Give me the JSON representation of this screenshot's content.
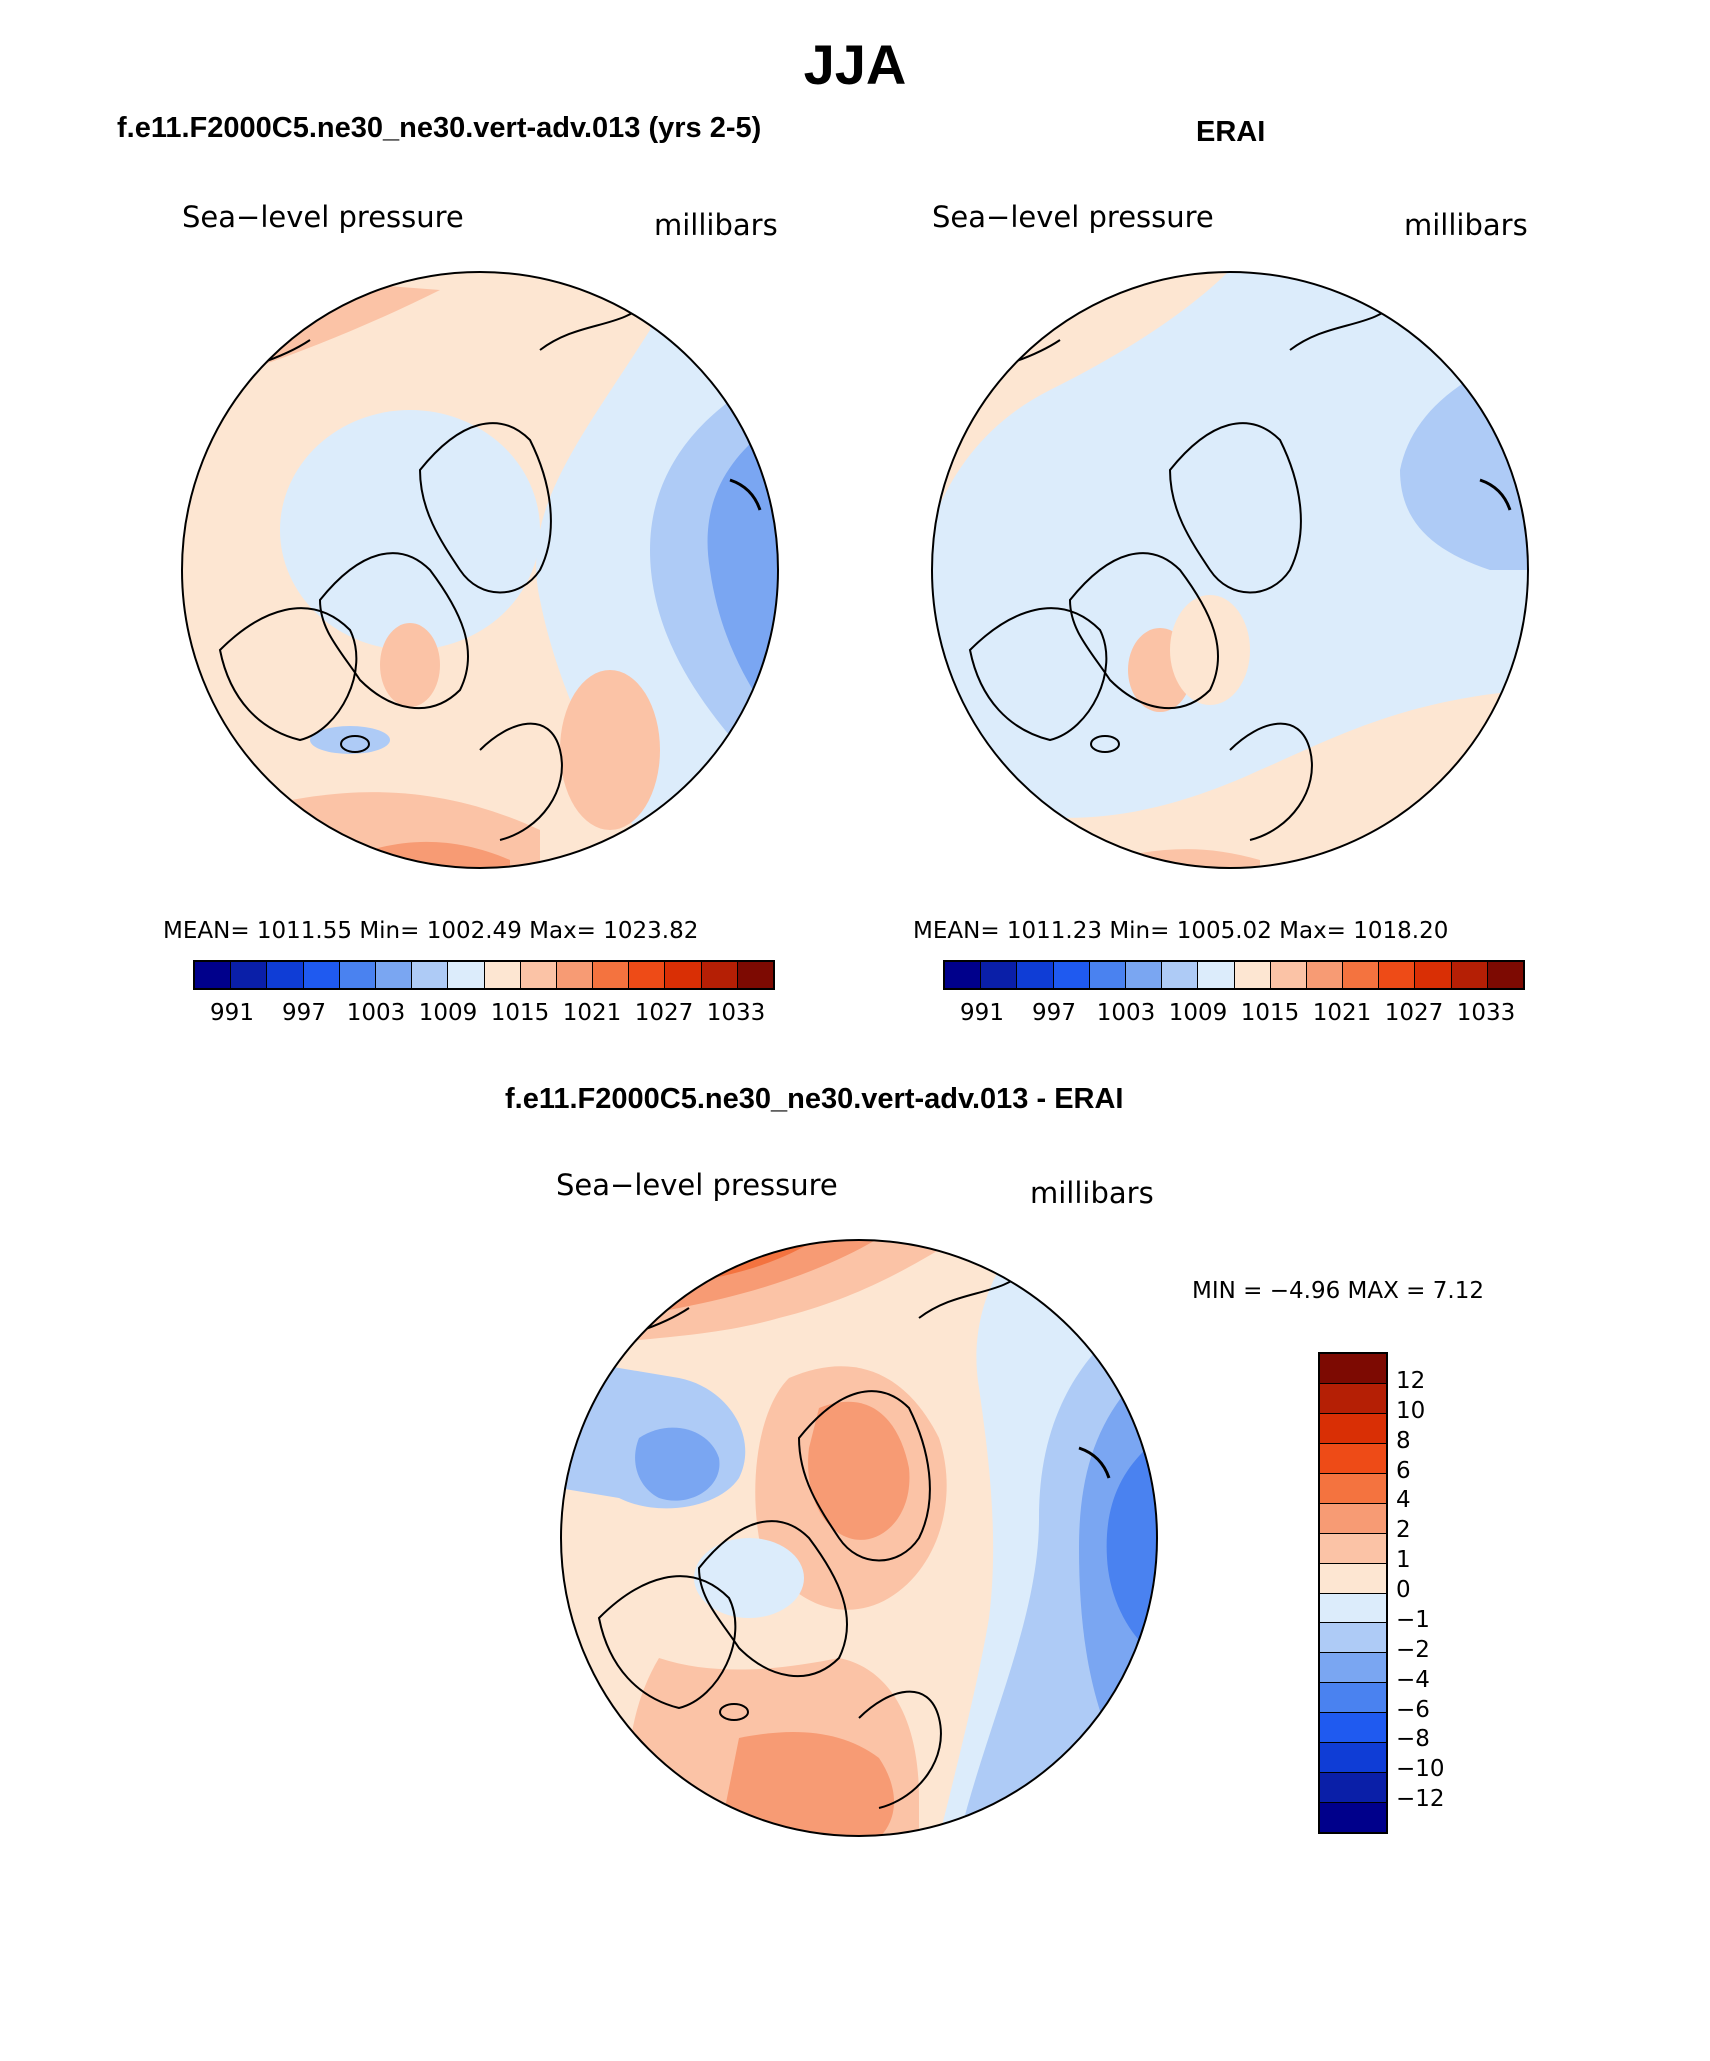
{
  "figure_title": "JJA",
  "panels": {
    "model": {
      "title": "f.e11.F2000C5.ne30_ne30.vert-adv.013 (yrs 2-5)",
      "left_label": "Sea−level pressure",
      "right_label": "millibars",
      "stats": "MEAN=  1011.55   Min=  1002.49   Max=  1023.82"
    },
    "obs": {
      "title": "ERAI",
      "left_label": "Sea−level pressure",
      "right_label": "millibars",
      "stats": "MEAN=  1011.23   Min=  1005.02   Max=  1018.20"
    },
    "diff": {
      "title": "f.e11.F2000C5.ne30_ne30.vert-adv.013 - ERAI",
      "left_label": "Sea−level pressure",
      "right_label": "millibars",
      "minmax": "MIN =   −4.96  MAX =     7.12"
    }
  },
  "colorbar_abs": {
    "colors": [
      "#00008b",
      "#0a1fa8",
      "#0f3dd6",
      "#1f5af0",
      "#4a82f0",
      "#7aa6f2",
      "#aecbf6",
      "#dcecfb",
      "#fde6d2",
      "#fbc3a6",
      "#f79b74",
      "#f4733f",
      "#ee4b17",
      "#d92f05",
      "#b51f05",
      "#7d0a02"
    ],
    "tick_labels": [
      "991",
      "997",
      "1003",
      "1009",
      "1015",
      "1021",
      "1027",
      "1033"
    ]
  },
  "colorbar_diff": {
    "colors": [
      "#7d0a02",
      "#b51f05",
      "#d92f05",
      "#ee4b17",
      "#f4733f",
      "#f79b74",
      "#fbc3a6",
      "#fde6d2",
      "#dcecfb",
      "#aecbf6",
      "#7aa6f2",
      "#4a82f0",
      "#1f5af0",
      "#0f3dd6",
      "#0a1fa8",
      "#00008b"
    ],
    "tick_labels": [
      "12",
      "10",
      "8",
      "6",
      "4",
      "2",
      "1",
      "0",
      "−1",
      "−2",
      "−4",
      "−6",
      "−8",
      "−10",
      "−12"
    ]
  }
}
